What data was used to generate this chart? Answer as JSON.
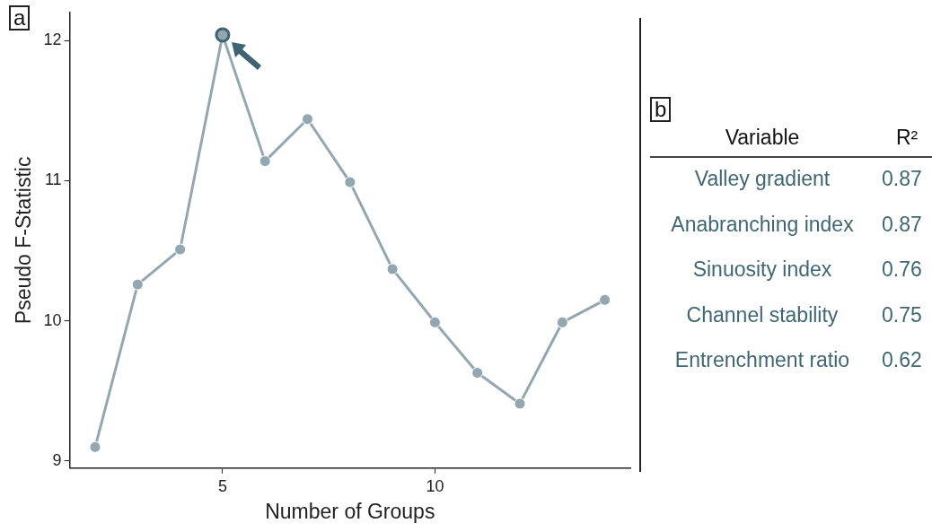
{
  "chart_data": [
    {
      "type": "line",
      "annotations": [
        "a"
      ],
      "xlabel": "Number of Groups",
      "ylabel": "Pseudo F-Statistic",
      "xlim": [
        1.4,
        14.6
      ],
      "xticks": [
        5,
        10
      ],
      "ylim": [
        8.95,
        12.2
      ],
      "yticks": [
        9,
        10,
        11,
        12
      ],
      "grid": false,
      "legend": false,
      "marker": "circle",
      "line_style": "solid",
      "series": [
        {
          "type": "line",
          "color": "#93a7b1",
          "x": [
            2,
            3,
            4,
            5,
            6,
            7,
            8,
            9,
            10,
            11,
            12,
            13,
            14
          ],
          "values": [
            9.1,
            10.26,
            10.51,
            12.04,
            11.14,
            11.44,
            10.99,
            10.37,
            9.99,
            9.63,
            9.41,
            9.99,
            10.15
          ]
        },
        {
          "type": "scatter",
          "color": "#3d6470",
          "x": [
            5
          ],
          "values": [
            12.04
          ]
        }
      ]
    },
    {
      "type": "other",
      "annotations": [
        "b"
      ],
      "xlabel": "Variable",
      "ylabel": "R²",
      "categories": [
        "Valley gradient",
        "Anabranching index",
        "Sinuosity index",
        "Channel stability",
        "Entrenchment ratio"
      ],
      "values": [
        0.87,
        0.87,
        0.76,
        0.75,
        0.62
      ],
      "data_labels": true
    }
  ]
}
